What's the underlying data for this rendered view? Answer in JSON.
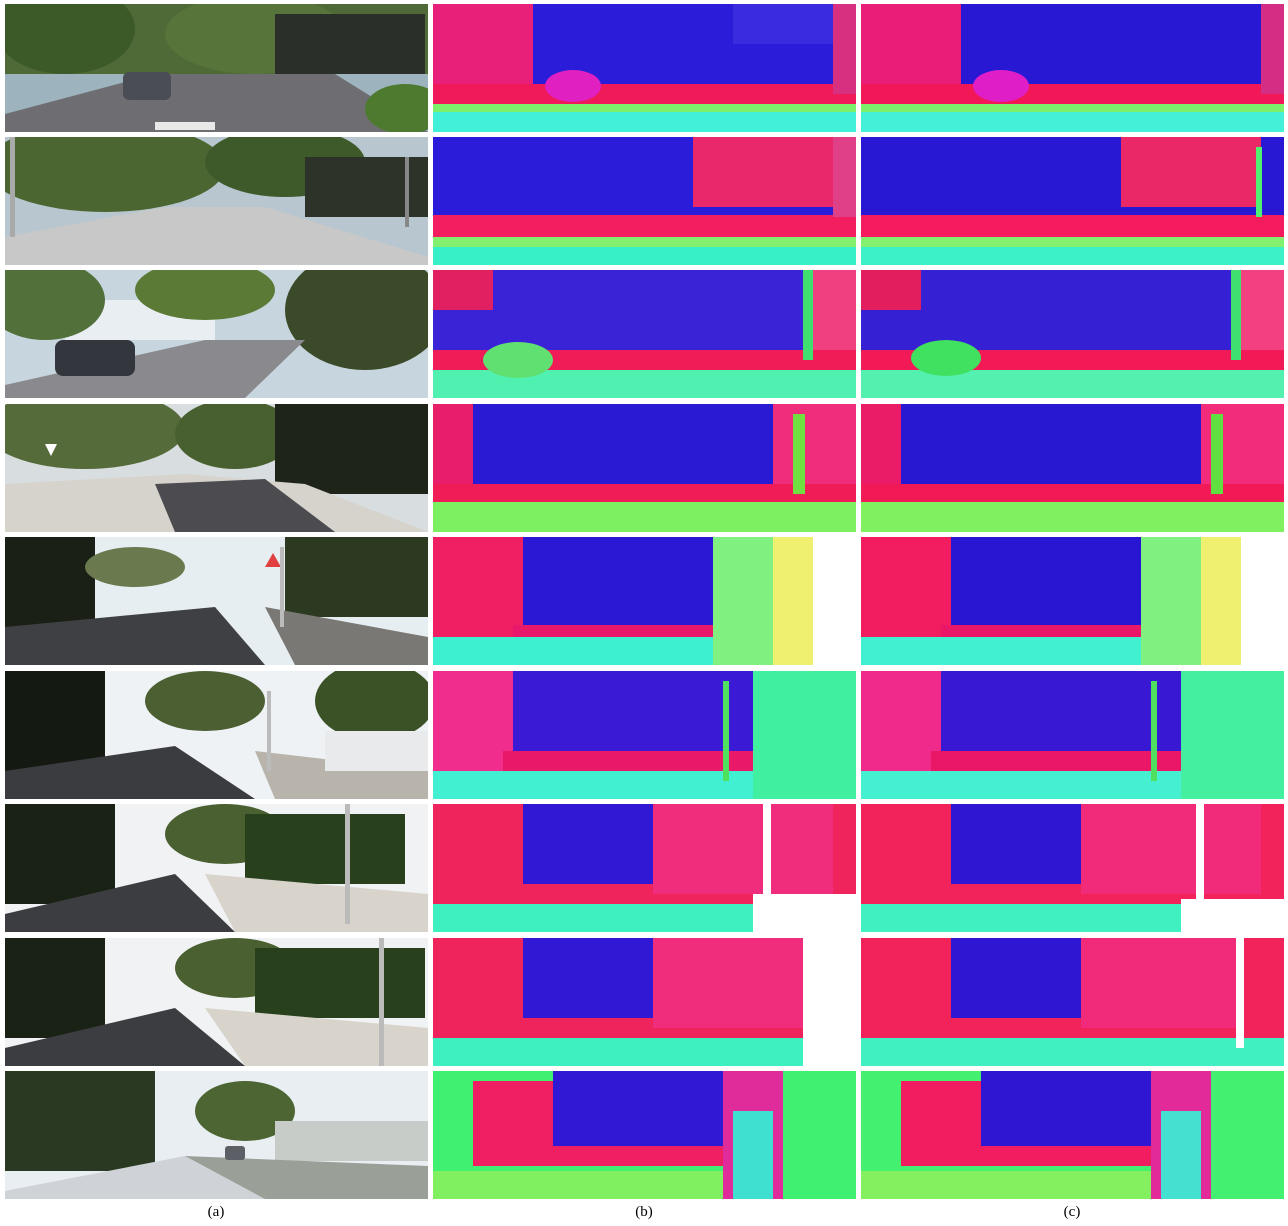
{
  "captions": [
    "(a)",
    "(b)",
    "(c)"
  ],
  "columns": [
    {
      "id": "a",
      "content": "rgb-street-photo"
    },
    {
      "id": "b",
      "content": "surface-normal-map"
    },
    {
      "id": "c",
      "content": "surface-normal-map"
    }
  ],
  "row_count": 9
}
